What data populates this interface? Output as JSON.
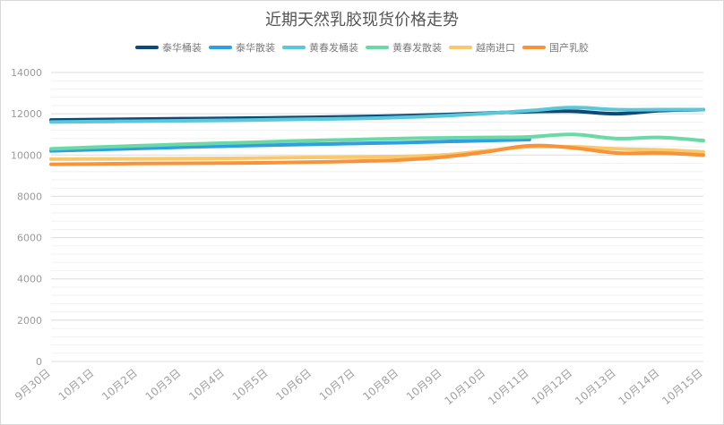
{
  "chart_data": {
    "type": "line",
    "title": "近期天然乳胶现货价格走势",
    "xlabel": "",
    "ylabel": "",
    "ylim": [
      0,
      14000
    ],
    "yticks": [
      0,
      2000,
      4000,
      6000,
      8000,
      10000,
      12000,
      14000
    ],
    "grid": true,
    "legend_position": "top-center",
    "categories": [
      "9月30日",
      "10月1日",
      "10月2日",
      "10月3日",
      "10月4日",
      "10月5日",
      "10月6日",
      "10月7日",
      "10月8日",
      "10月9日",
      "10月10日",
      "10月11日",
      "10月12日",
      "10月13日",
      "10月14日",
      "10月15日"
    ],
    "series": [
      {
        "name": "泰华桶装",
        "color": "#0d4a7a",
        "values": [
          11700,
          11720,
          11740,
          11760,
          11780,
          11800,
          11830,
          11860,
          11900,
          11960,
          12030,
          12100,
          12120,
          12000,
          12150,
          12200
        ]
      },
      {
        "name": "泰华散装",
        "color": "#2f9fe0",
        "values": [
          10200,
          10260,
          10320,
          10380,
          10430,
          10480,
          10520,
          10560,
          10600,
          10650,
          10700,
          10750,
          null,
          null,
          null,
          null
        ]
      },
      {
        "name": "黄春发桶装",
        "color": "#5ac8d8",
        "values": [
          11600,
          11620,
          11640,
          11660,
          11680,
          11710,
          11740,
          11770,
          11820,
          11900,
          12010,
          12150,
          12300,
          12200,
          12200,
          12200
        ]
      },
      {
        "name": "黄春发散装",
        "color": "#6ad9a6",
        "values": [
          10300,
          10380,
          10450,
          10520,
          10580,
          10640,
          10700,
          10750,
          10800,
          10830,
          10850,
          10880,
          11000,
          10800,
          10850,
          10700
        ]
      },
      {
        "name": "越南进口",
        "color": "#f8c86a",
        "values": [
          9800,
          9810,
          9820,
          9830,
          9840,
          9860,
          9880,
          9900,
          9930,
          10000,
          10200,
          10400,
          10400,
          10300,
          10250,
          10150
        ]
      },
      {
        "name": "国产乳胶",
        "color": "#f7933a",
        "values": [
          9550,
          9570,
          9590,
          9600,
          9610,
          9630,
          9660,
          9700,
          9760,
          9900,
          10150,
          10450,
          10350,
          10100,
          10100,
          10000
        ]
      }
    ]
  }
}
